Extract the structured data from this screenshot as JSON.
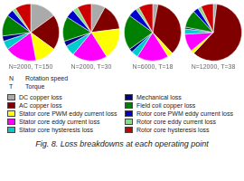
{
  "chart_data": {
    "type": "pie",
    "title": "Fig. 8. Loss breakdowns at each operating point",
    "categories": [
      "DC copper loss",
      "AC copper loss",
      "Stator core PWM eddy current loss",
      "Stator core eddy current loss",
      "Stator core hysteresis loss",
      "Mechanical loss",
      "Field coil copper loss",
      "Rotor core PWM eddy current loss",
      "Rotor core eddy current loss",
      "Rotor core hysteresis loss"
    ],
    "colors": [
      "#aaaaaa",
      "#800000",
      "#ffff00",
      "#ff00ff",
      "#00cccc",
      "#00008b",
      "#008000",
      "#0000cc",
      "#88dd88",
      "#cc0000"
    ],
    "series": [
      {
        "name": "N=2000, T=150",
        "values": [
          15,
          20,
          12,
          18,
          5,
          3,
          12,
          4,
          2,
          9
        ]
      },
      {
        "name": "N=2000, T=30",
        "values": [
          8,
          15,
          18,
          20,
          6,
          3,
          14,
          5,
          3,
          8
        ]
      },
      {
        "name": "N=6000, T=18",
        "values": [
          3,
          35,
          3,
          18,
          4,
          2,
          20,
          5,
          2,
          8
        ]
      },
      {
        "name": "N=12000, T=38",
        "values": [
          2,
          60,
          2,
          10,
          3,
          1,
          10,
          3,
          2,
          7
        ]
      }
    ],
    "annotations": [
      [
        "N",
        "Rotation speed"
      ],
      [
        "T",
        "Torque"
      ]
    ],
    "legend": "bottom"
  }
}
